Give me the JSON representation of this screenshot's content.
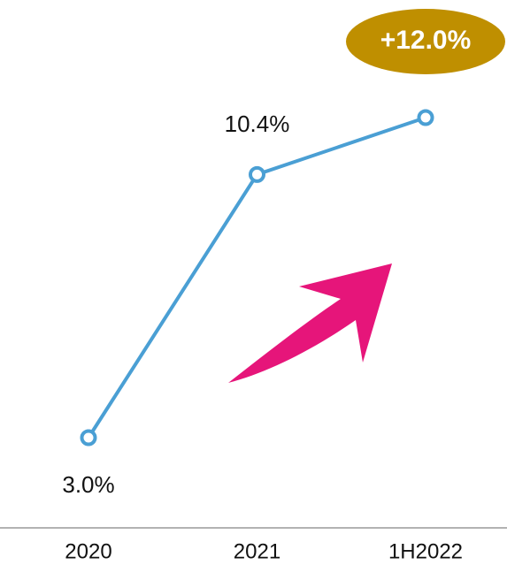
{
  "chart_data": {
    "type": "line",
    "categories": [
      "2020",
      "2021",
      "1H2022"
    ],
    "values": [
      3.0,
      10.4,
      12.0
    ],
    "value_labels": [
      "3.0%",
      "10.4%",
      "+12.0%"
    ],
    "color": "#4a9fd4"
  }
}
